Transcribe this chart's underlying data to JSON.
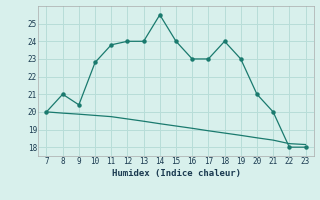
{
  "xlabel": "Humidex (Indice chaleur)",
  "line1_x": [
    7,
    8,
    9,
    10,
    11,
    12,
    13,
    14,
    15,
    16,
    17,
    18,
    19,
    20,
    21,
    22,
    23
  ],
  "line1_y": [
    20.0,
    21.0,
    20.4,
    22.8,
    23.8,
    24.0,
    24.0,
    25.5,
    24.0,
    23.0,
    23.0,
    24.0,
    23.0,
    21.0,
    20.0,
    18.0,
    18.0
  ],
  "line2_x": [
    7,
    8,
    9,
    10,
    11,
    12,
    13,
    14,
    15,
    16,
    17,
    18,
    19,
    20,
    21,
    22,
    23
  ],
  "line2_y": [
    20.0,
    19.93,
    19.87,
    19.8,
    19.73,
    19.6,
    19.47,
    19.33,
    19.2,
    19.07,
    18.93,
    18.8,
    18.67,
    18.53,
    18.4,
    18.2,
    18.15
  ],
  "line_color": "#1a7a6e",
  "bg_color": "#d8f0ec",
  "grid_color": "#b8ddd8",
  "ylim": [
    17.5,
    26.0
  ],
  "yticks": [
    18,
    19,
    20,
    21,
    22,
    23,
    24,
    25
  ],
  "xlim": [
    6.5,
    23.5
  ],
  "xticks": [
    7,
    8,
    9,
    10,
    11,
    12,
    13,
    14,
    15,
    16,
    17,
    18,
    19,
    20,
    21,
    22,
    23
  ]
}
